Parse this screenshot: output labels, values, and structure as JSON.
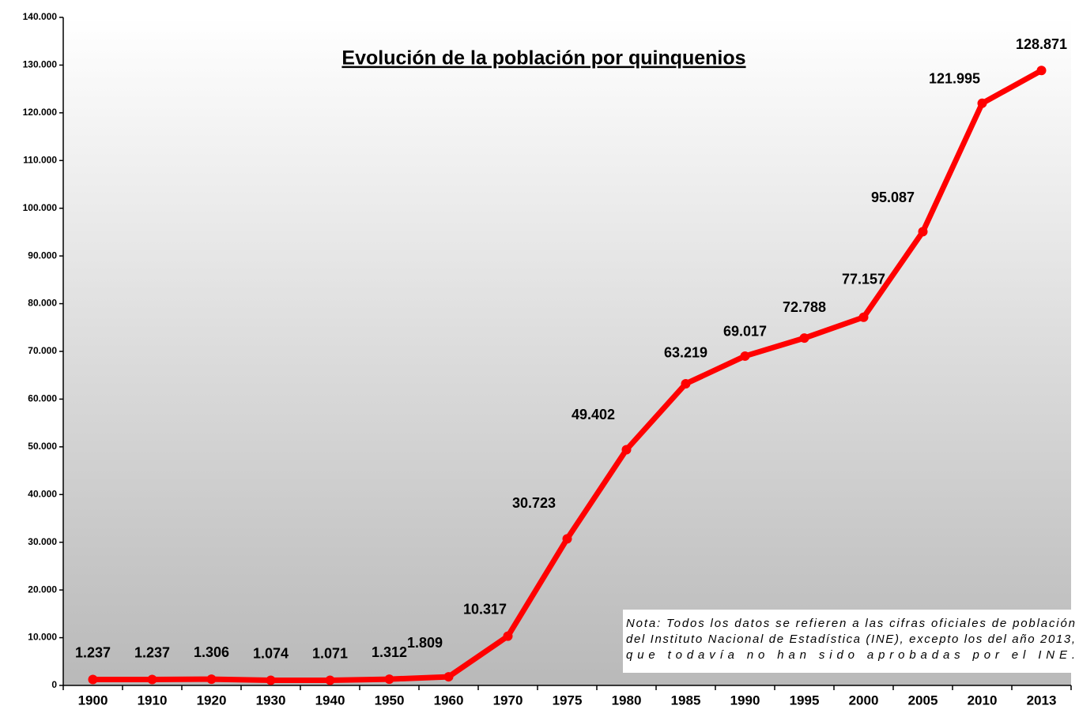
{
  "chart_data": {
    "type": "line",
    "title": "Evolución de la población por quinquenios",
    "categories": [
      "1900",
      "1910",
      "1920",
      "1930",
      "1940",
      "1950",
      "1960",
      "1970",
      "1975",
      "1980",
      "1985",
      "1990",
      "1995",
      "2000",
      "2005",
      "2010",
      "2013"
    ],
    "series": [
      {
        "color": "#ff0000",
        "values": [
          1237,
          1237,
          1306,
          1074,
          1071,
          1312,
          1809,
          10317,
          30723,
          49402,
          63219,
          69017,
          72788,
          77157,
          95087,
          121995,
          128871
        ],
        "value_labels": [
          "1.237",
          "1.237",
          "1.306",
          "1.074",
          "1.071",
          "1.312",
          "1.809",
          "10.317",
          "30.723",
          "49.402",
          "63.219",
          "69.017",
          "72.788",
          "77.157",
          "95.087",
          "121.995",
          "128.871"
        ]
      }
    ],
    "ylim": [
      0,
      140000
    ],
    "yticks": [
      0,
      {
        "value": 10000,
        "label": "10.000"
      },
      {
        "value": 20000,
        "label": "20.000"
      },
      {
        "value": 30000,
        "label": "30.000"
      },
      {
        "value": 40000,
        "label": "40.000"
      },
      {
        "value": 50000,
        "label": "50.000"
      },
      {
        "value": 60000,
        "label": "60.000"
      },
      {
        "value": 70000,
        "label": "70.000"
      },
      {
        "value": 80000,
        "label": "80.000"
      },
      {
        "value": 90000,
        "label": "90.000"
      },
      {
        "value": 100000,
        "label": "100.000"
      },
      {
        "value": 110000,
        "label": "110.000"
      },
      {
        "value": 120000,
        "label": "120.000"
      },
      {
        "value": 130000,
        "label": "130.000"
      },
      {
        "value": 140000,
        "label": "140.000"
      }
    ],
    "note": [
      "Nota: Todos los datos se refieren a las cifras oficiales de población",
      "del Instituto Nacional de Estadística (INE), excepto los del año 2013,",
      "que todavía no han sido aprobadas por el INE."
    ]
  }
}
